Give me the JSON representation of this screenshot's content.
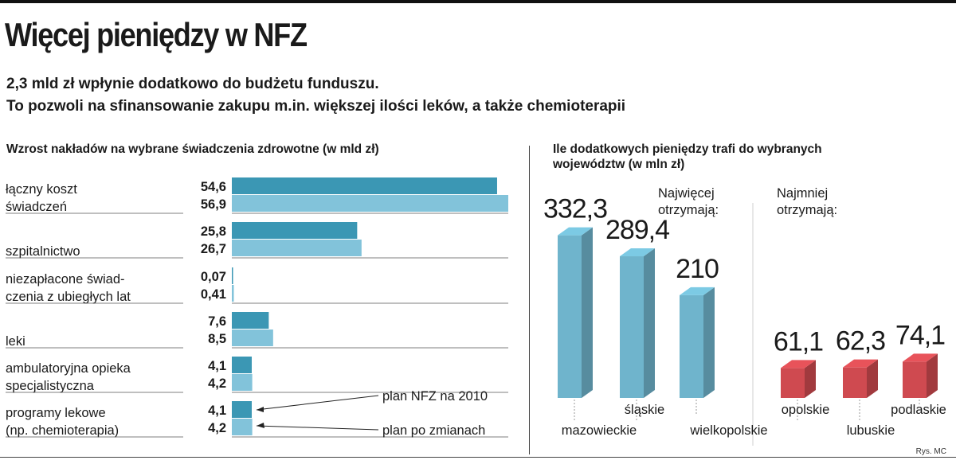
{
  "title": "Więcej pieniędzy w NFZ",
  "subtitle_lines": [
    "2,3 mld zł wpłynie dodatkowo do budżetu funduszu.",
    "To pozwoli na sfinansowanie zakupu m.in. większej ilości leków, a także chemioterapii"
  ],
  "credit": "Rys. MC",
  "colors": {
    "bar_plan": "#3b97b4",
    "bar_after": "#82c3da",
    "col_blue": "#6fb4cc",
    "col_red": "#cf4a50"
  },
  "chart_data": [
    {
      "type": "bar",
      "orientation": "horizontal",
      "title": "Wzrost nakładów na wybrane świadczenia zdrowotne (w mld zł)",
      "categories": [
        [
          "łączny koszt",
          "świadczeń"
        ],
        [
          "szpitalnictwo"
        ],
        [
          "niezapłacone świad-",
          "czenia z ubiegłych lat"
        ],
        [
          "leki"
        ],
        [
          "ambulatoryjna opieka",
          "specjalistyczna"
        ],
        [
          "programy lekowe",
          "(np. chemioterapia)"
        ]
      ],
      "series": [
        {
          "name": "plan NFZ na 2010",
          "values": [
            54.6,
            25.8,
            0.07,
            7.6,
            4.1,
            4.1
          ],
          "labels": [
            "54,6",
            "25,8",
            "0,07",
            "7,6",
            "4,1",
            "4,1"
          ]
        },
        {
          "name": "plan po zmianach",
          "values": [
            56.9,
            26.7,
            0.41,
            8.5,
            4.2,
            4.2
          ],
          "labels": [
            "56,9",
            "26,7",
            "0,41",
            "8,5",
            "4,2",
            "4,2"
          ]
        }
      ],
      "xlim": [
        0,
        56.9
      ]
    },
    {
      "type": "bar",
      "title": "Ile dodatkowych pieniędzy trafi do wybranych województw (w mln zł)",
      "groups": [
        {
          "note": [
            "Najwięcej",
            "otrzymają:"
          ],
          "color": "blue",
          "categories": [
            "mazowieckie",
            "śląskie",
            "wielkopolskie"
          ],
          "values": [
            332.3,
            289.4,
            210
          ],
          "labels": [
            "332,3",
            "289,4",
            "210"
          ]
        },
        {
          "note": [
            "Najmniej",
            "otrzymają:"
          ],
          "color": "red",
          "categories": [
            "opolskie",
            "lubuskie",
            "podlaskie"
          ],
          "values": [
            61.1,
            62.3,
            74.1
          ],
          "labels": [
            "61,1",
            "62,3",
            "74,1"
          ]
        }
      ]
    }
  ]
}
